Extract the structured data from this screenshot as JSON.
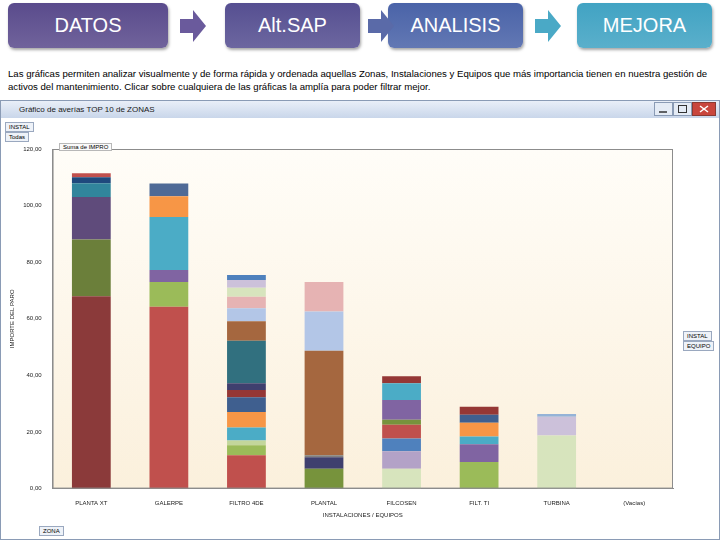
{
  "header": {
    "steps": [
      {
        "label": "DATOS",
        "color": "#5a4b8c"
      },
      {
        "label": "Alt.SAP",
        "color": "#564f91"
      },
      {
        "label": "ANALISIS",
        "color": "#4a63a8"
      },
      {
        "label": "MEJORA",
        "color": "#41a3c3"
      }
    ]
  },
  "description": "Las gráficas permiten analizar visualmente y de forma rápida y ordenada aquellas Zonas, Instalaciones y Equipos que más importancia tienen en nuestra gestión de activos del mantenimiento. Clicar sobre cualquiera de las gráficas la amplía para poder filtrar mejor.",
  "window": {
    "buttons": {
      "top_left": [
        "INSTAL",
        "Todas"
      ],
      "right": [
        "INSTAL",
        "EQUIPO"
      ],
      "bottom": [
        "ZONA"
      ]
    }
  },
  "chart_data": {
    "type": "bar",
    "title": "Gráfico de averías TOP 10 de ZONAS",
    "annotations": [
      "Suma de IMPRO"
    ],
    "x_label": "INSTALACIONES / EQUIPOS",
    "y_label": "IMPORTE DEL PARO",
    "categories": [
      "PLANTA XT",
      "GALERPE",
      "FILTRO 4DE",
      "PLANTAL",
      "FILCOSEN",
      "FILT. TI",
      "TURBINA",
      "(Vacías)"
    ],
    "stacked": true,
    "grid": false,
    "data_labels": false,
    "ylim": [
      0,
      120
    ],
    "yticks": [
      {
        "value": 0,
        "label": "0,00"
      },
      {
        "value": 20,
        "label": "20,00"
      },
      {
        "value": 40,
        "label": "40,00"
      },
      {
        "value": 60,
        "label": "60,00"
      },
      {
        "value": 80,
        "label": "80,00"
      },
      {
        "value": 100,
        "label": "100,00"
      },
      {
        "value": 120,
        "label": "120,00"
      }
    ],
    "series": [
      {
        "values": [
          68,
          64.3,
          11.8,
          7,
          7,
          9.4,
          18.8,
          0
        ],
        "colors": [
          "#8b3a3a",
          "#c0504d",
          "#c0504d",
          "#77933c",
          "#d7e4bd",
          "#9bbb59",
          "#d7e4bd",
          "#8b3a3a"
        ]
      },
      {
        "values": [
          20,
          8.7,
          3.5,
          4.1,
          6.2,
          6.3,
          6.6,
          null
        ],
        "colors": [
          "#6b7f3a",
          "#9bbb59",
          "#9bbb59",
          "#3f3f6e",
          "#b3a2c7",
          "#8064a2",
          "#ccc1da",
          null
        ]
      },
      {
        "values": [
          15,
          4.2,
          1.7,
          0.7,
          4.5,
          2.7,
          1,
          null
        ],
        "colors": [
          "#5f4b7b",
          "#8064a2",
          "#c3d69b",
          "#7f7f7f",
          "#4f81bd",
          "#4bacc6",
          "#95b3d7",
          null
        ]
      },
      {
        "values": [
          4.9,
          18.8,
          4.6,
          36.9,
          4.9,
          4.9,
          null,
          null
        ],
        "colors": [
          "#31859c",
          "#4bacc6",
          "#4bacc6",
          "#a5673f",
          "#c0504d",
          "#f79646",
          null,
          null
        ]
      },
      {
        "values": [
          2.1,
          7.3,
          5.5,
          13.9,
          1.7,
          2.8,
          null,
          null
        ],
        "colors": [
          "#1f497d",
          "#f79646",
          "#f79646",
          "#b3c6e7",
          "#77933c",
          "#3f5f8f",
          null,
          null
        ]
      },
      {
        "values": [
          1.4,
          4.5,
          5.2,
          10.4,
          7,
          2.8,
          null,
          null
        ],
        "colors": [
          "#c0504d",
          "#4f6a96",
          "#3f5f8f",
          "#e6b3b3",
          "#8064a2",
          "#953735",
          null,
          null
        ]
      },
      {
        "values": [
          null,
          null,
          2.5,
          null,
          5.9,
          null,
          null,
          null
        ],
        "colors": [
          null,
          null,
          "#953735",
          null,
          "#4bacc6",
          null,
          null,
          null
        ]
      },
      {
        "values": [
          null,
          null,
          2.4,
          null,
          2.5,
          null,
          null,
          null
        ],
        "colors": [
          null,
          null,
          "#3f3f6e",
          null,
          "#953735",
          null,
          null,
          null
        ]
      },
      {
        "values": [
          null,
          null,
          15,
          null,
          null,
          null,
          null,
          null
        ],
        "colors": [
          null,
          null,
          "#31707f",
          null,
          null,
          null,
          null,
          null
        ]
      },
      {
        "values": [
          null,
          null,
          6.9,
          null,
          null,
          null,
          null,
          null
        ],
        "colors": [
          null,
          null,
          "#a5673f",
          null,
          null,
          null,
          null,
          null
        ]
      },
      {
        "values": [
          null,
          null,
          4.6,
          null,
          null,
          null,
          null,
          null
        ],
        "colors": [
          null,
          null,
          "#b3c6e7",
          null,
          null,
          null,
          null,
          null
        ]
      },
      {
        "values": [
          null,
          null,
          4.1,
          null,
          null,
          null,
          null,
          null
        ],
        "colors": [
          null,
          null,
          "#e6b3b3",
          null,
          null,
          null,
          null,
          null
        ]
      },
      {
        "values": [
          null,
          null,
          3.2,
          null,
          null,
          null,
          null,
          null
        ],
        "colors": [
          null,
          null,
          "#d7e4bd",
          null,
          null,
          null,
          null,
          null
        ]
      },
      {
        "values": [
          null,
          null,
          2.7,
          null,
          null,
          null,
          null,
          null
        ],
        "colors": [
          null,
          null,
          "#ccc1da",
          null,
          null,
          null,
          null,
          null
        ]
      },
      {
        "values": [
          null,
          null,
          1.8,
          null,
          null,
          null,
          null,
          null
        ],
        "colors": [
          null,
          null,
          "#4f81bd",
          null,
          null,
          null,
          null,
          null
        ]
      }
    ]
  }
}
